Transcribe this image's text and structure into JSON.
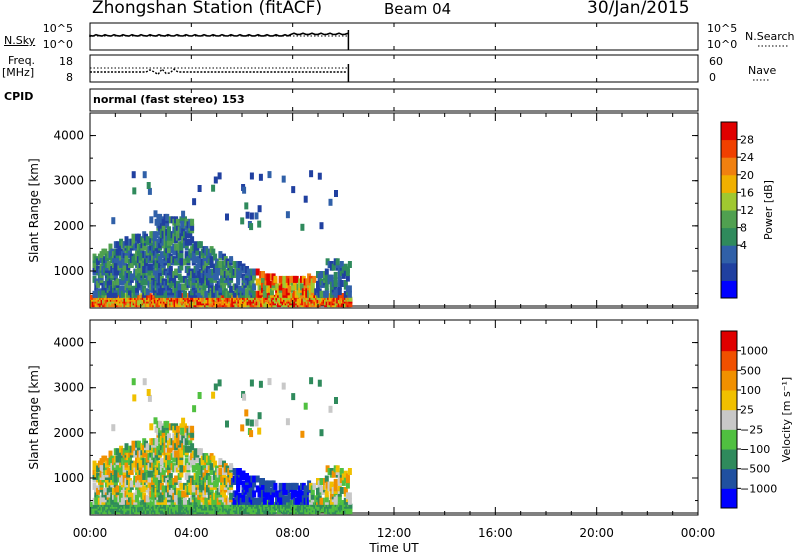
{
  "header": {
    "station": "Zhongshan Station (fitACF)",
    "beam": "Beam 04",
    "date": "30/Jan/2015"
  },
  "strip_labels": {
    "nsky": "N.Sky",
    "nsearch": "N.Search",
    "freq": "Freq.",
    "freq_unit": "[MHz]",
    "nave": "Nave",
    "cpid": "CPID"
  },
  "strip_ticks": {
    "nsky_left": [
      "10^5",
      "10^0"
    ],
    "nsky_right": [
      "10^5",
      "10^0"
    ],
    "freq_left": [
      "18",
      "8"
    ],
    "freq_right": [
      "60",
      "0"
    ]
  },
  "cpid_value": "normal (fast stereo) 153",
  "chart_data": [
    {
      "type": "heatmap",
      "name": "power",
      "ylabel": "Slant Range [km]",
      "xlabel": "",
      "yticks": [
        "4000",
        "3000",
        "2000",
        "1000"
      ],
      "ylim": [
        180,
        4500
      ],
      "xlim": [
        0,
        24
      ],
      "colorbar_label": "Power [dB]",
      "colorbar_ticks": [
        "28",
        "24",
        "20",
        "16",
        "12",
        "8",
        "4"
      ],
      "colorbar_colors": [
        "#0000ff",
        "#2040a0",
        "#3060a8",
        "#2f8a5c",
        "#50a050",
        "#a0c830",
        "#f0b000",
        "#f08010",
        "#f04000",
        "#e00000"
      ],
      "data_extent_hours": [
        0,
        10.2
      ]
    },
    {
      "type": "heatmap",
      "name": "velocity",
      "ylabel": "Slant Range [km]",
      "xlabel": "Time UT",
      "yticks": [
        "4000",
        "3000",
        "2000",
        "1000"
      ],
      "xticks": [
        "00:00",
        "04:00",
        "08:00",
        "12:00",
        "16:00",
        "20:00",
        "00:00"
      ],
      "ylim": [
        180,
        4500
      ],
      "xlim": [
        0,
        24
      ],
      "colorbar_label": "Velocity [m s⁻¹]",
      "colorbar_ticks": [
        "1000",
        "500",
        "100",
        "25",
        "−25",
        "−100",
        "−500",
        "−1000"
      ],
      "colorbar_colors": [
        "#0000ff",
        "#2050a0",
        "#2f8a5c",
        "#50c040",
        "#c8c8c8",
        "#f0c000",
        "#f09000",
        "#f05000",
        "#e00000"
      ],
      "data_extent_hours": [
        0,
        10.2
      ]
    }
  ]
}
